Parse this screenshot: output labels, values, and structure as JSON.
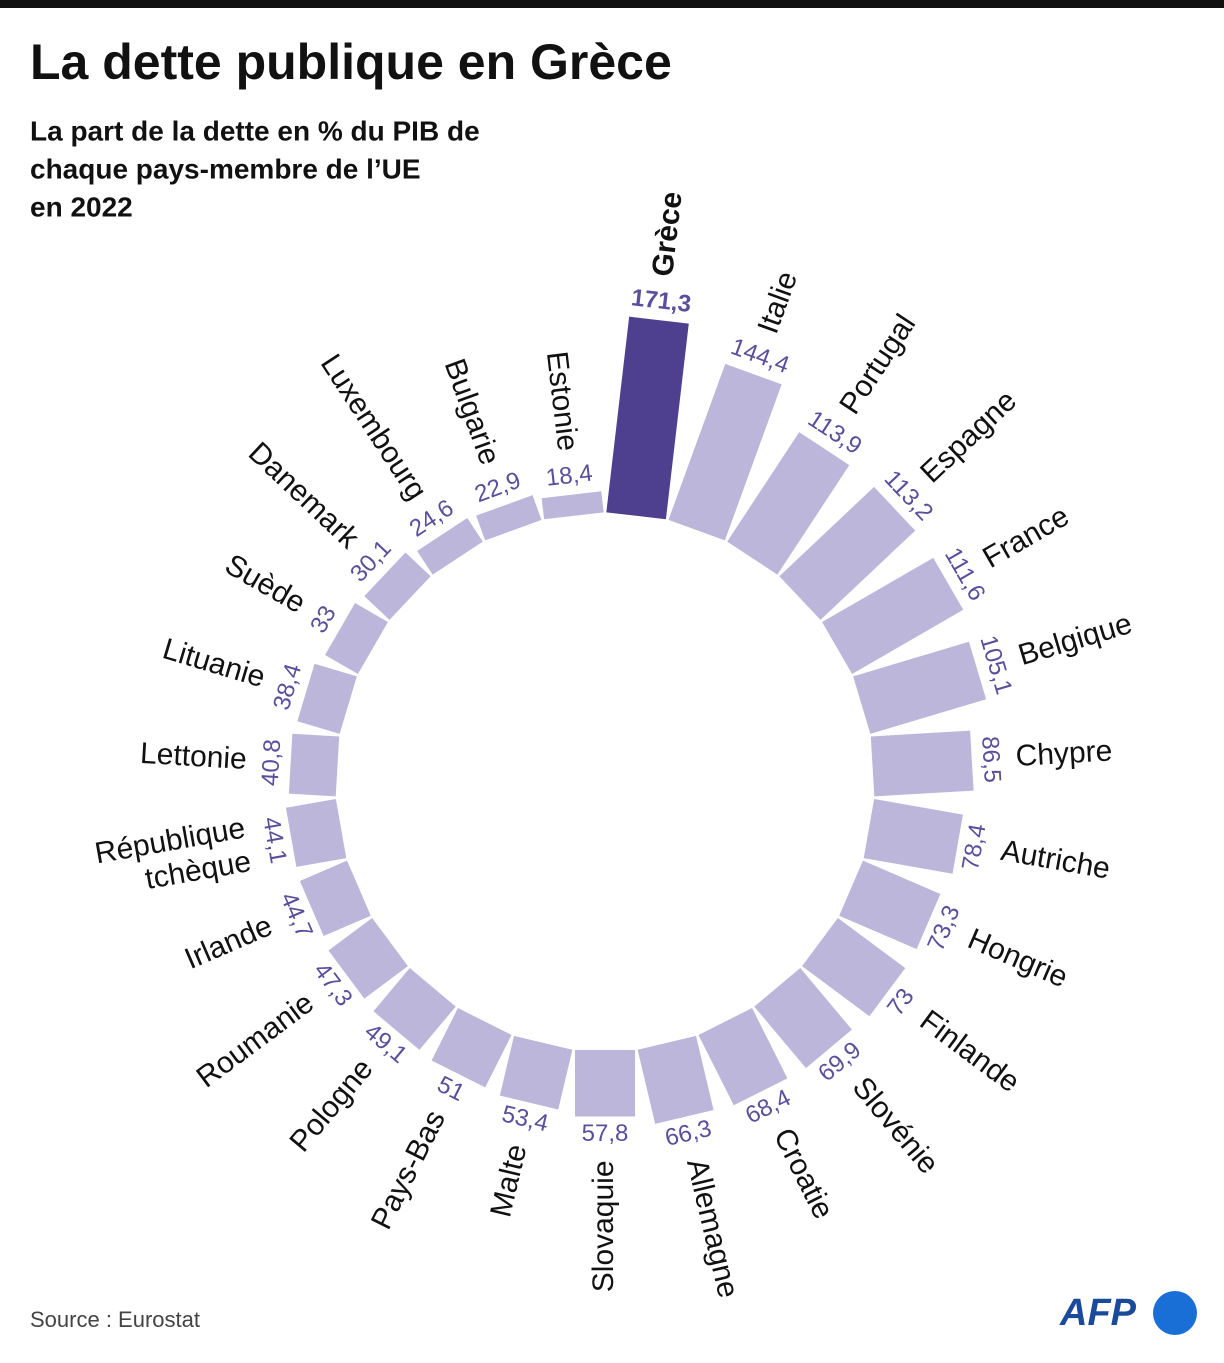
{
  "chart_data": {
    "type": "radial_bar",
    "title": "La dette publique en Grèce",
    "subtitle": [
      "La part de la dette en % du PIB de",
      "chaque pays-membre de l’UE",
      "en 2022"
    ],
    "source": "Source : Eurostat",
    "logo": "AFP",
    "categories": [
      "Grèce",
      "Italie",
      "Portugal",
      "Espagne",
      "France",
      "Belgique",
      "Chypre",
      "Autriche",
      "Hongrie",
      "Finlande",
      "Slovénie",
      "Croatie",
      "Allemagne",
      "Slovaquie",
      "Malte",
      "Pays-Bas",
      "Pologne",
      "Roumanie",
      "Irlande",
      "République tchèque",
      "Lettonie",
      "Lituanie",
      "Suède",
      "Danemark",
      "Luxembourg",
      "Bulgarie",
      "Estonie"
    ],
    "values": [
      171.3,
      144.4,
      113.9,
      113.2,
      111.6,
      105.1,
      86.5,
      78.4,
      73.3,
      73,
      69.9,
      68.4,
      66.3,
      57.8,
      53.4,
      51,
      49.1,
      47.3,
      44.7,
      44.1,
      40.8,
      38.4,
      33,
      30.1,
      24.6,
      22.9,
      18.4
    ],
    "value_labels": [
      "171,3",
      "144,4",
      "113,9",
      "113,2",
      "111,6",
      "105,1",
      "86,5",
      "78,4",
      "73,3",
      "73",
      "69,9",
      "68,4",
      "66,3",
      "57,8",
      "53,4",
      "51",
      "49,1",
      "47,3",
      "44,7",
      "44,1",
      "40,8",
      "38,4",
      "33",
      "30,1",
      "24,6",
      "22,9",
      "18,4"
    ],
    "color": "#bbb6da",
    "highlight_color": "#4f3f8f",
    "highlight": [
      0
    ]
  }
}
